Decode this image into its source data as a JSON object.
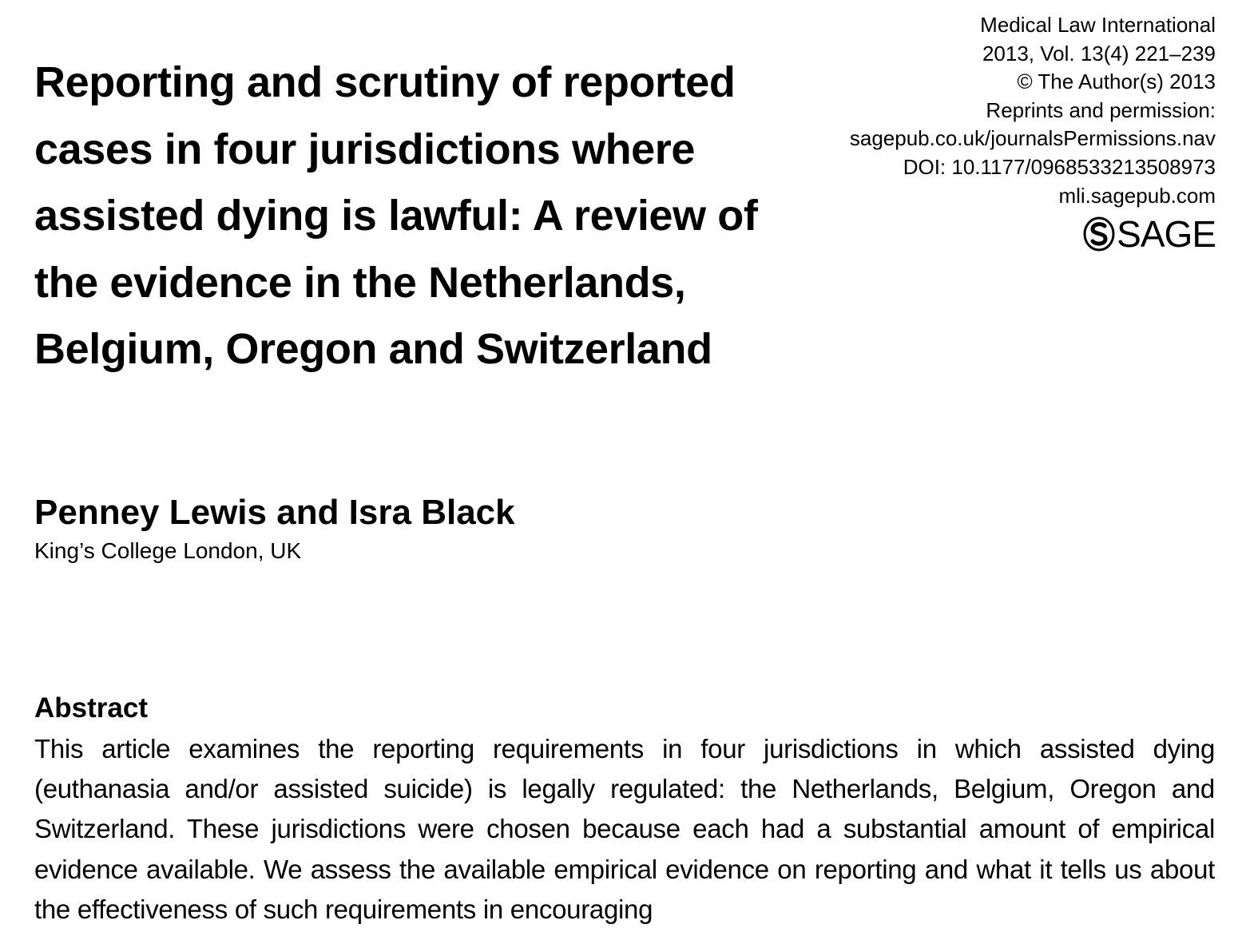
{
  "journal": {
    "name": "Medical Law International",
    "issue": "2013, Vol. 13(4) 221–239",
    "copyright": "© The Author(s) 2013",
    "reprints_label": "Reprints and permission:",
    "permissions_url": "sagepub.co.uk/journalsPermissions.nav",
    "doi": "DOI: 10.1177/0968533213508973",
    "website": "mli.sagepub.com",
    "publisher_logo": "SAGE"
  },
  "article": {
    "title": "Reporting and scrutiny of reported cases in four jurisdictions where assisted dying is lawful: A review of the evidence in the Netherlands, Belgium, Oregon and Switzerland",
    "authors": "Penney Lewis and Isra Black",
    "affiliation": "King’s College London, UK"
  },
  "abstract": {
    "heading": "Abstract",
    "text": "This article examines the reporting requirements in four jurisdictions in which assisted dying (euthanasia and/or assisted suicide) is legally regulated: the Netherlands, Belgium, Oregon and Switzerland. These jurisdictions were chosen because each had a substantial amount of empirical evidence available. We assess the available empirical evidence on reporting and what it tells us about the effectiveness of such requirements in encouraging"
  }
}
